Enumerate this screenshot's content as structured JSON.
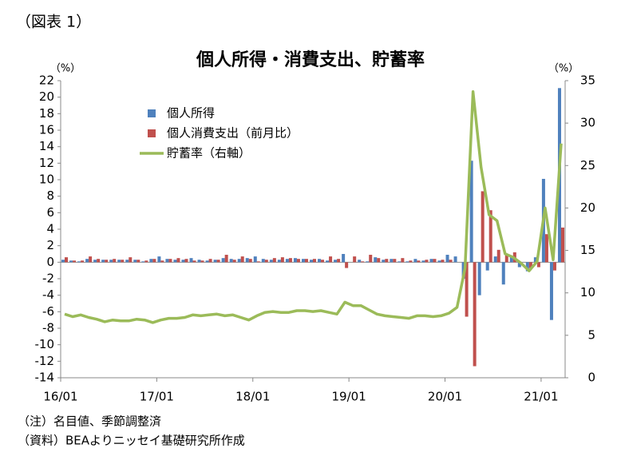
{
  "chart_data": {
    "type": "bar_line",
    "caption": "（図表 1）",
    "title": "個人所得・消費支出、貯蓄率",
    "y_unit": "（%）",
    "y2_unit": "（%）",
    "notes": [
      "（注）名目値、季節調整済",
      "（資料）BEAよりニッセイ基礎研究所作成"
    ],
    "categories": [
      "16/01",
      null,
      null,
      null,
      null,
      null,
      null,
      null,
      null,
      null,
      null,
      null,
      "17/01",
      null,
      null,
      null,
      null,
      null,
      null,
      null,
      null,
      null,
      null,
      null,
      "18/01",
      null,
      null,
      null,
      null,
      null,
      null,
      null,
      null,
      null,
      null,
      null,
      "19/01",
      null,
      null,
      null,
      null,
      null,
      null,
      null,
      null,
      null,
      null,
      null,
      "20/01",
      null,
      null,
      null,
      null,
      null,
      null,
      null,
      null,
      null,
      null,
      null,
      "21/01",
      null,
      null
    ],
    "ylim": [
      -14,
      22
    ],
    "yticks": [
      -14,
      -12,
      -10,
      -8,
      -6,
      -4,
      -2,
      0,
      2,
      4,
      6,
      8,
      10,
      12,
      14,
      16,
      18,
      20,
      22
    ],
    "y2lim": [
      0,
      35
    ],
    "y2ticks": [
      0,
      5,
      10,
      15,
      20,
      25,
      30,
      35
    ],
    "legend": "upper-left",
    "series": [
      {
        "name": "個人所得",
        "type": "bar",
        "color": "#4f81bd",
        "values": [
          0.3,
          0.2,
          0.1,
          0.4,
          0.3,
          0.3,
          0.3,
          0.3,
          0.3,
          0.3,
          0.1,
          0.4,
          0.7,
          0.4,
          0.3,
          0.3,
          0.5,
          0.3,
          0.2,
          0.3,
          0.5,
          0.4,
          0.4,
          0.5,
          0.7,
          0.4,
          0.3,
          0.3,
          0.4,
          0.5,
          0.4,
          0.3,
          0.4,
          0.2,
          0.3,
          1.0,
          0.0,
          0.3,
          0.1,
          0.6,
          0.3,
          0.4,
          0.1,
          0.1,
          0.4,
          0.2,
          0.4,
          0.2,
          0.9,
          0.7,
          -2.0,
          12.3,
          -4.0,
          -1.0,
          0.7,
          -2.7,
          0.7,
          -0.6,
          -1.1,
          0.6,
          10.1,
          -7.0,
          21.1
        ]
      },
      {
        "name": "個人消費支出（前月比）",
        "type": "bar",
        "color": "#c0504d",
        "values": [
          0.6,
          0.2,
          0.2,
          0.7,
          0.4,
          0.3,
          0.4,
          0.3,
          0.6,
          0.3,
          0.2,
          0.4,
          0.2,
          0.4,
          0.5,
          0.4,
          0.2,
          0.2,
          0.4,
          0.3,
          0.9,
          0.3,
          0.7,
          0.4,
          0.1,
          0.3,
          0.5,
          0.6,
          0.5,
          0.4,
          0.4,
          0.4,
          0.3,
          0.7,
          0.4,
          -0.7,
          0.7,
          0.1,
          0.9,
          0.5,
          0.4,
          0.4,
          0.5,
          0.2,
          0.2,
          0.3,
          0.4,
          0.3,
          0.3,
          0.0,
          -6.6,
          -12.6,
          8.6,
          6.3,
          1.5,
          1.0,
          1.2,
          0.0,
          -0.7,
          -0.6,
          3.4,
          -1.0,
          4.2
        ]
      },
      {
        "name": "貯蓄率（右軸）",
        "type": "line",
        "axis": "y2",
        "color": "#9bbb59",
        "values": [
          7.5,
          7.2,
          7.4,
          7.1,
          6.9,
          6.6,
          6.8,
          6.7,
          6.7,
          6.9,
          6.8,
          6.5,
          6.8,
          7.0,
          7.0,
          7.1,
          7.4,
          7.3,
          7.4,
          7.5,
          7.3,
          7.4,
          7.1,
          6.8,
          7.3,
          7.7,
          7.8,
          7.7,
          7.7,
          7.9,
          7.9,
          7.8,
          7.9,
          7.7,
          7.5,
          8.9,
          8.5,
          8.5,
          8.0,
          7.5,
          7.3,
          7.2,
          7.1,
          7.0,
          7.3,
          7.3,
          7.2,
          7.3,
          7.6,
          8.3,
          12.9,
          33.7,
          24.8,
          19.2,
          18.5,
          14.6,
          14.2,
          13.5,
          12.6,
          13.7,
          20.0,
          13.9,
          27.6
        ]
      }
    ]
  }
}
